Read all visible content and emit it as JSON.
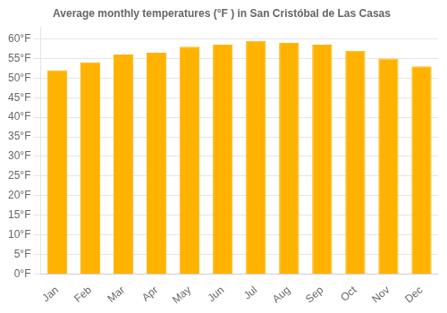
{
  "chart_data": {
    "type": "bar",
    "title": "Average monthly temperatures (°F ) in San Cristóbal de Las Casas",
    "categories": [
      "Jan",
      "Feb",
      "Mar",
      "Apr",
      "May",
      "Jun",
      "Jul",
      "Aug",
      "Sep",
      "Oct",
      "Nov",
      "Dec"
    ],
    "values": [
      52.0,
      54.0,
      56.0,
      56.5,
      58.0,
      58.5,
      59.5,
      59.0,
      58.5,
      57.0,
      55.0,
      53.0
    ],
    "color": "#FFB300",
    "ylim": [
      0,
      63
    ],
    "yticks": [
      {
        "value": 0,
        "label": "0°F"
      },
      {
        "value": 5,
        "label": "5°F"
      },
      {
        "value": 10,
        "label": "10°F"
      },
      {
        "value": 15,
        "label": "15°F"
      },
      {
        "value": 20,
        "label": "20°F"
      },
      {
        "value": 25,
        "label": "25°F"
      },
      {
        "value": 30,
        "label": "30°F"
      },
      {
        "value": 35,
        "label": "35°F"
      },
      {
        "value": 40,
        "label": "40°F"
      },
      {
        "value": 45,
        "label": "45°F"
      },
      {
        "value": 50,
        "label": "50°F"
      },
      {
        "value": 55,
        "label": "55°F"
      },
      {
        "value": 60,
        "label": "60°F"
      }
    ],
    "grid": true
  }
}
